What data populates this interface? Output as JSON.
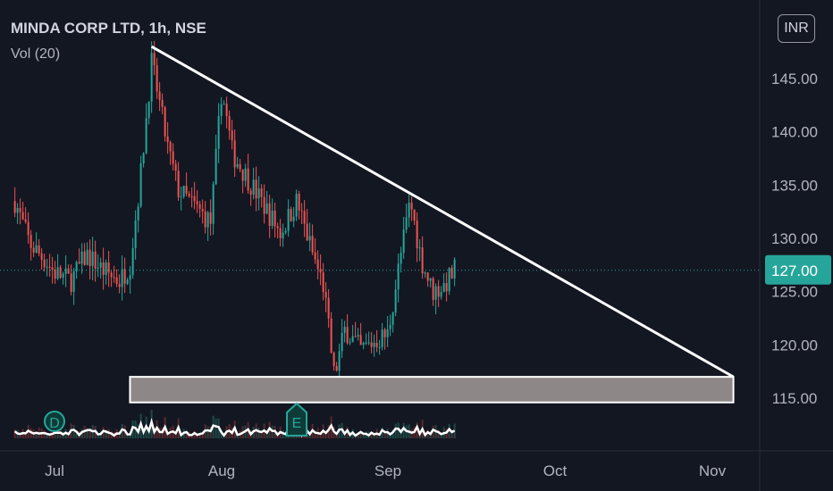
{
  "header": {
    "symbol_title": "MINDA CORP LTD, 1h, NSE",
    "volume_label": "Vol (20)",
    "currency": "INR"
  },
  "colors": {
    "background": "#131722",
    "up_candle": "#26a69a",
    "down_candle": "#ef5350",
    "price_badge": "#26a69a",
    "trendline": "#ffffff",
    "support_zone": "#8e8787"
  },
  "chart_data": {
    "type": "candlestick",
    "title": "MINDA CORP LTD, 1h, NSE",
    "y_ticks": [
      "145.00",
      "140.00",
      "135.00",
      "130.00",
      "125.00",
      "120.00",
      "115.00"
    ],
    "x_ticks": [
      "Jul",
      "Aug",
      "Sep",
      "Oct",
      "Nov"
    ],
    "ylim": [
      112.0,
      150.0
    ],
    "last_price": 127.0,
    "last_price_label": "127.00",
    "price_path": [
      {
        "x": "Jun 23",
        "y": 133.5
      },
      {
        "x": "Jun 26",
        "y": 129.5
      },
      {
        "x": "Jun 29",
        "y": 128.0
      },
      {
        "x": "Jul 1",
        "y": 126.8
      },
      {
        "x": "Jul 4",
        "y": 126.0
      },
      {
        "x": "Jul 7",
        "y": 128.5
      },
      {
        "x": "Jul 10",
        "y": 127.0
      },
      {
        "x": "Jul 13",
        "y": 126.0
      },
      {
        "x": "Jul 15",
        "y": 127.5
      },
      {
        "x": "Jul 17",
        "y": 136.0
      },
      {
        "x": "Jul 19",
        "y": 146.5
      },
      {
        "x": "Jul 20",
        "y": 144.0
      },
      {
        "x": "Jul 22",
        "y": 138.5
      },
      {
        "x": "Jul 24",
        "y": 134.5
      },
      {
        "x": "Jul 27",
        "y": 133.0
      },
      {
        "x": "Jul 30",
        "y": 131.5
      },
      {
        "x": "Aug 1",
        "y": 144.0
      },
      {
        "x": "Aug 3",
        "y": 138.0
      },
      {
        "x": "Aug 6",
        "y": 135.5
      },
      {
        "x": "Aug 9",
        "y": 133.0
      },
      {
        "x": "Aug 12",
        "y": 130.5
      },
      {
        "x": "Aug 15",
        "y": 133.5
      },
      {
        "x": "Aug 18",
        "y": 128.5
      },
      {
        "x": "Aug 20",
        "y": 125.5
      },
      {
        "x": "Aug 22",
        "y": 117.0
      },
      {
        "x": "Aug 24",
        "y": 121.5
      },
      {
        "x": "Aug 27",
        "y": 119.5
      },
      {
        "x": "Aug 30",
        "y": 120.5
      },
      {
        "x": "Sep 1",
        "y": 121.0
      },
      {
        "x": "Sep 3",
        "y": 127.5
      },
      {
        "x": "Sep 5",
        "y": 133.5
      },
      {
        "x": "Sep 7",
        "y": 128.0
      },
      {
        "x": "Sep 9",
        "y": 125.0
      },
      {
        "x": "Sep 11",
        "y": 125.5
      },
      {
        "x": "Sep 13",
        "y": 127.0
      }
    ],
    "trendline": {
      "start": {
        "x": "Jul 19",
        "y": 148.0
      },
      "end": {
        "x": "Nov 5",
        "y": 117.0
      }
    },
    "support_zone": {
      "x_start": "Jul 15",
      "x_end": "Nov 5",
      "y_low": 114.6,
      "y_high": 117.0
    },
    "events": [
      {
        "label": "D",
        "x": "Jul 1"
      },
      {
        "label": "E",
        "x": "Aug 15"
      }
    ],
    "grid": false
  }
}
